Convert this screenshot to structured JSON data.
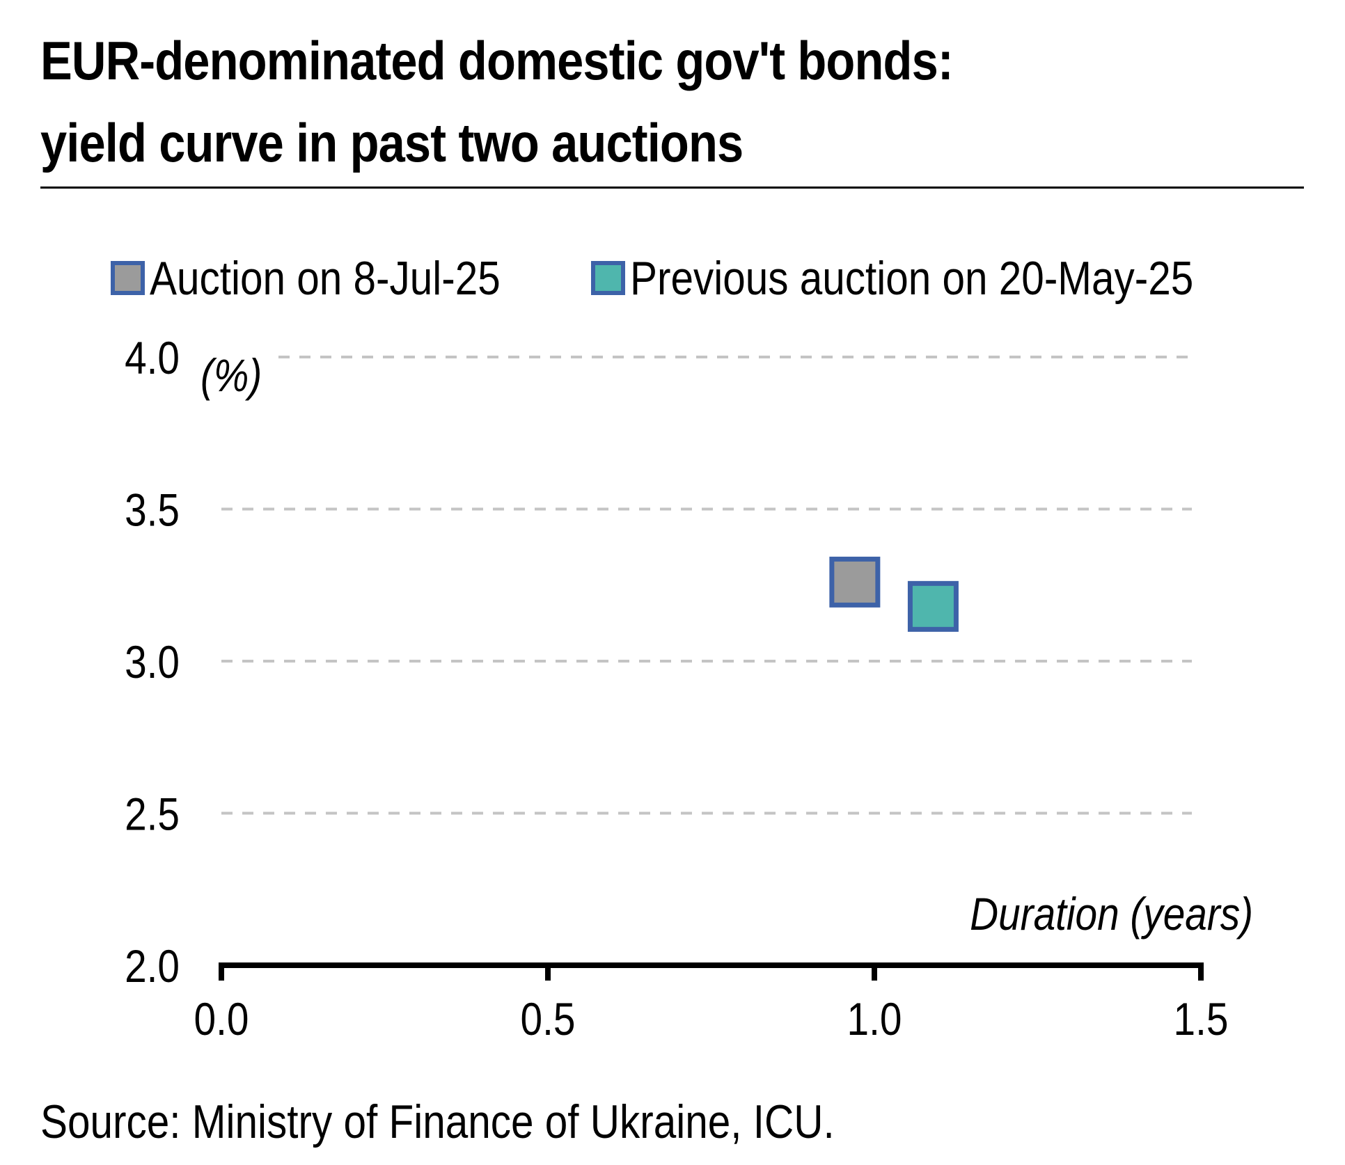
{
  "chart_data": {
    "type": "scatter",
    "title_lines": [
      "EUR-denominated domestic gov't bonds:",
      "yield curve in past two auctions"
    ],
    "xlabel": "Duration (years)",
    "ylabel": "(%)",
    "xlim": [
      0.0,
      1.5
    ],
    "ylim": [
      2.0,
      4.0
    ],
    "x_ticks": [
      "0.0",
      "0.5",
      "1.0",
      "1.5"
    ],
    "y_ticks": [
      "2.0",
      "2.5",
      "3.0",
      "3.5",
      "4.0"
    ],
    "grid": "horizontal dashed",
    "legend_position": "top",
    "series": [
      {
        "name": "Auction on 8-Jul-25",
        "color": "#9b9b9b",
        "border_color": "#3d62a8",
        "marker": "square",
        "points": [
          {
            "x": 0.97,
            "y": 3.26
          }
        ]
      },
      {
        "name": "Previous auction on 20-May-25",
        "color": "#4fb6ad",
        "border_color": "#3d62a8",
        "marker": "square",
        "points": [
          {
            "x": 1.09,
            "y": 3.18
          }
        ]
      }
    ]
  },
  "source": "Source: Ministry of Finance of Ukraine, ICU."
}
